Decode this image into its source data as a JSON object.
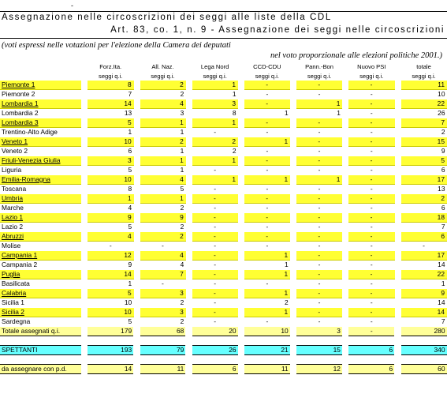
{
  "header": {
    "dash": "-",
    "title": "Assegnazione nelle circoscrizioni dei seggi alle liste della CDL",
    "subtitle": "Art. 83, co. 1, n. 9 - Assegnazione dei seggi nelle circoscrizioni",
    "note_line1": "(voti espressi nelle votazioni per l'elezione della Camera dei deputati",
    "note_line2": "nel voto proporzionale alle elezioni politiche 2001.)"
  },
  "columns": [
    {
      "name": "Forz.Ita.",
      "sub": "seggi q.i."
    },
    {
      "name": "All. Naz.",
      "sub": "seggi q.i."
    },
    {
      "name": "Lega Nord",
      "sub": "seggi q.i."
    },
    {
      "name": "CCD-CDU",
      "sub": "seggi q.i."
    },
    {
      "name": "Pann.-Bon",
      "sub": "seggi q.i."
    },
    {
      "name": "Nuovo PSI",
      "sub": "seggi q.i."
    },
    {
      "name": "totale",
      "sub": "seggi q.i."
    }
  ],
  "rows": [
    {
      "label": "Piemonte 1",
      "values": [
        "8",
        "2",
        "1",
        "-",
        "-",
        "-",
        "11"
      ],
      "highlight": true
    },
    {
      "label": "Piemonte 2",
      "values": [
        "7",
        "2",
        "1",
        "-",
        "-",
        "-",
        "10"
      ],
      "highlight": false
    },
    {
      "label": "Lombardia 1",
      "values": [
        "14",
        "4",
        "3",
        "-",
        "1",
        "-",
        "22"
      ],
      "highlight": true
    },
    {
      "label": "Lombardia 2",
      "values": [
        "13",
        "3",
        "8",
        "1",
        "1",
        "-",
        "26"
      ],
      "highlight": false
    },
    {
      "label": "Lombardia 3",
      "values": [
        "5",
        "1",
        "1",
        "-",
        "-",
        "-",
        "7"
      ],
      "highlight": true
    },
    {
      "label": "Trentino-Alto Adige",
      "values": [
        "1",
        "1",
        "-",
        "-",
        "-",
        "-",
        "2"
      ],
      "highlight": false
    },
    {
      "label": "Veneto 1",
      "values": [
        "10",
        "2",
        "2",
        "1",
        "-",
        "-",
        "15"
      ],
      "highlight": true
    },
    {
      "label": "Veneto 2",
      "values": [
        "6",
        "1",
        "2",
        "-",
        "-",
        "-",
        "9"
      ],
      "highlight": false
    },
    {
      "label": "Friuli-Venezia Giulia",
      "values": [
        "3",
        "1",
        "1",
        "-",
        "-",
        "-",
        "5"
      ],
      "highlight": true
    },
    {
      "label": "Liguria",
      "values": [
        "5",
        "1",
        "-",
        "-",
        "-",
        "-",
        "6"
      ],
      "highlight": false
    },
    {
      "label": "Emilia-Romagna",
      "values": [
        "10",
        "4",
        "1",
        "1",
        "1",
        "-",
        "17"
      ],
      "highlight": true
    },
    {
      "label": "Toscana",
      "values": [
        "8",
        "5",
        "-",
        "-",
        "-",
        "-",
        "13"
      ],
      "highlight": false
    },
    {
      "label": "Umbria",
      "values": [
        "1",
        "1",
        "-",
        "-",
        "-",
        "-",
        "2"
      ],
      "highlight": true
    },
    {
      "label": "Marche",
      "values": [
        "4",
        "2",
        "-",
        "-",
        "-",
        "-",
        "6"
      ],
      "highlight": false
    },
    {
      "label": "Lazio 1",
      "values": [
        "9",
        "9",
        "-",
        "-",
        "-",
        "-",
        "18"
      ],
      "highlight": true
    },
    {
      "label": "Lazio 2",
      "values": [
        "5",
        "2",
        "-",
        "-",
        "-",
        "-",
        "7"
      ],
      "highlight": false
    },
    {
      "label": "Abruzzi",
      "values": [
        "4",
        "2",
        "-",
        "-",
        "-",
        "-",
        "6"
      ],
      "highlight": true
    },
    {
      "label": "Molise",
      "values": [
        "-",
        "-",
        "-",
        "-",
        "-",
        "-",
        "-"
      ],
      "highlight": false
    },
    {
      "label": "Campania 1",
      "values": [
        "12",
        "4",
        "-",
        "1",
        "-",
        "-",
        "17"
      ],
      "highlight": true
    },
    {
      "label": "Campania 2",
      "values": [
        "9",
        "4",
        "-",
        "1",
        "-",
        "-",
        "14"
      ],
      "highlight": false
    },
    {
      "label": "Puglia",
      "values": [
        "14",
        "7",
        "-",
        "1",
        "-",
        "-",
        "22"
      ],
      "highlight": true
    },
    {
      "label": "Basilicata",
      "values": [
        "1",
        "-",
        "-",
        "-",
        "-",
        "-",
        "1"
      ],
      "highlight": false
    },
    {
      "label": "Calabria",
      "values": [
        "5",
        "3",
        "-",
        "1",
        "-",
        "-",
        "9"
      ],
      "highlight": true
    },
    {
      "label": "Sicilia 1",
      "values": [
        "10",
        "2",
        "-",
        "2",
        "-",
        "-",
        "14"
      ],
      "highlight": false
    },
    {
      "label": "Sicilia 2",
      "values": [
        "10",
        "3",
        "-",
        "1",
        "-",
        "-",
        "14"
      ],
      "highlight": true
    },
    {
      "label": "Sardegna",
      "values": [
        "5",
        "2",
        "-",
        "-",
        "-",
        "-",
        "7"
      ],
      "highlight": false
    }
  ],
  "totals": {
    "label": "Totale assegnati q.i.",
    "values": [
      "179",
      "68",
      "20",
      "10",
      "3",
      "-",
      "280"
    ]
  },
  "spettanti": {
    "label": "SPETTANTI",
    "values": [
      "193",
      "79",
      "26",
      "21",
      "15",
      "6",
      "340"
    ]
  },
  "da_assegnare": {
    "label": "da assegnare con p.d.",
    "values": [
      "14",
      "11",
      "6",
      "11",
      "12",
      "6",
      "60"
    ]
  },
  "colors": {
    "yellow": "#ffff33",
    "pale_yellow": "#ffff99",
    "cyan": "#66ffff"
  }
}
